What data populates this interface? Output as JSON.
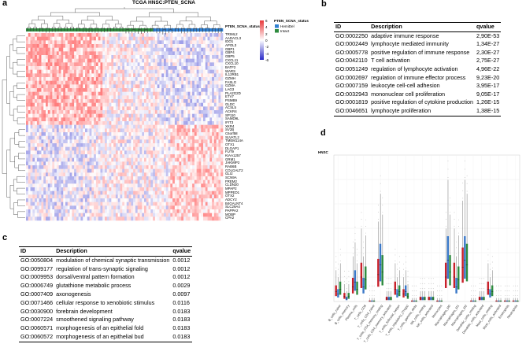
{
  "panel_a": {
    "letter": "a",
    "title": "TCGA HNSC:PTEN_SCNA",
    "annotation_label": "PTEN_SCNA_status",
    "legend_title": "PTEN_SCNA_status",
    "legend_items": [
      {
        "label": "HemiDel",
        "color": "#2f7fd1"
      },
      {
        "label": "Intact",
        "color": "#2e8b3e"
      }
    ],
    "color_scale_ticks": [
      "6",
      "4",
      "2",
      "0",
      "-2",
      "-4",
      "-6"
    ],
    "colors": {
      "high": "#e8383a",
      "mid": "#ffffff",
      "low": "#2a2ac8"
    },
    "genes": [
      "TRIML2",
      "AADACL3",
      "IDO1",
      "APOL3",
      "GBP1",
      "GBP4",
      "GBP5",
      "CXCL11",
      "CXCL10",
      "BATF2",
      "WARS",
      "IL12RB1",
      "GZMH",
      "FASLG",
      "GZMA",
      "LAG3",
      "PLA2G2D",
      "ETV7",
      "PSMB9",
      "GLDC",
      "ACSL5",
      "ACKR4",
      "SP110",
      "SAMD9L",
      "IFIT3",
      "XKR4",
      "SV2B",
      "C6orf58",
      "SLVATL2",
      "TMEM114A",
      "OTX1",
      "DLGAP1",
      "FUT9",
      "KIAA1257",
      "GRM1",
      "JAKMIP2",
      "RAB6B",
      "COLGALT2",
      "GLI2",
      "SCN9A",
      "FREM2",
      "CLDN20",
      "MPAP2",
      "MPPED1",
      "OTX2",
      "ADCY2",
      "B4GALNT4",
      "SLC29A4",
      "PAPPA2",
      "MOBP",
      "CPA2"
    ]
  },
  "panel_b": {
    "letter": "b",
    "headers": [
      "ID",
      "Description",
      "qvalue"
    ],
    "rows": [
      [
        "GO:0002250",
        "adaptive immune response",
        "2,90E-53"
      ],
      [
        "GO:0002449",
        "lymphocyte mediated immunity",
        "1,34E-27"
      ],
      [
        "GO:0005778",
        "positive regulation of immune response",
        "2,30E-27"
      ],
      [
        "GO:0042110",
        "T cell activation",
        "2,75E-27"
      ],
      [
        "GO:0051249",
        "regulation of lymphocyte activation",
        "4,96E-22"
      ],
      [
        "GO:0002697",
        "regulation of immune effector process",
        "9,23E-20"
      ],
      [
        "GO:0007159",
        "leukocyte cell-cell adhesion",
        "3,95E-17"
      ],
      [
        "GO:0032943",
        "mononuclear cell proliferation",
        "9,05E-17"
      ],
      [
        "GO:0001819",
        "positive regulation of cytokine production",
        "1,26E-15"
      ],
      [
        "GO:0046651",
        "lymphocyte proliferation",
        "1,38E-15"
      ]
    ]
  },
  "panel_c": {
    "letter": "c",
    "headers": [
      "ID",
      "Description",
      "qvalue"
    ],
    "rows": [
      [
        "GO:0050804",
        "modulation of chemical synaptic transmission",
        "0.0012"
      ],
      [
        "GO:0099177",
        "regulation of trans-synaptic signaling",
        "0.0012"
      ],
      [
        "GO:0009953",
        "dorsal/ventral pattern formation",
        "0.0012"
      ],
      [
        "GO:0006749",
        "glutathione metabolic process",
        "0.0029"
      ],
      [
        "GO:0007409",
        "axonogenesis",
        "0.0097"
      ],
      [
        "GO:0071466",
        "cellular response to xenobiotic stimulus",
        "0.0116"
      ],
      [
        "GO:0030900",
        "forebrain development",
        "0.0183"
      ],
      [
        "GO:0007224",
        "smoothened signaling pathway",
        "0.0183"
      ],
      [
        "GO:0060571",
        "morphogenesis of an epithelial fold",
        "0.0183"
      ],
      [
        "GO:0060572",
        "morphogenesis of an epithelial bud",
        "0.0183"
      ]
    ]
  },
  "panel_d": {
    "letter": "d",
    "title": "HNSC",
    "colors": {
      "red": "#c8202a",
      "blue": "#3a78c8",
      "green": "#2e8b3e"
    },
    "chart_data": {
      "type": "box",
      "title": "HNSC",
      "categories": [
        "B_cells_naive",
        "B_cells_memory",
        "Plasma_cells",
        "T_cells_CD8",
        "T_cells_CD4_naive",
        "T_cells_CD4_memory_resting",
        "T_cells_CD4_memory_activated",
        "T_cells_follicular_helper",
        "T_cells_regulatory_(Tregs)",
        "T_cells_gamma_delta",
        "NK_cells_resting",
        "NK_cells_activated",
        "Monocytes",
        "Macrophages_M0",
        "Macrophages_M1",
        "Macrophages_M2",
        "Dendritic_cells_resting",
        "Dendritic_cells_activated",
        "Mast_cells_resting",
        "Mast_cells_activated",
        "Eosinophils",
        "Neutrophils"
      ],
      "series": [
        {
          "color": "#c8202a",
          "medians": [
            0.04,
            0.02,
            0.06,
            0.1,
            0.0,
            0.11,
            0.01,
            0.05,
            0.03,
            0.0,
            0.01,
            0.01,
            0.0,
            0.1,
            0.1,
            0.14,
            0.0,
            0.01,
            0.05,
            0.0,
            0.0,
            0.0
          ]
        },
        {
          "color": "#3a78c8",
          "medians": [
            0.03,
            0.01,
            0.08,
            0.06,
            0.0,
            0.15,
            0.01,
            0.03,
            0.04,
            0.0,
            0.01,
            0.01,
            0.0,
            0.17,
            0.06,
            0.17,
            0.0,
            0.01,
            0.03,
            0.0,
            0.0,
            0.0
          ]
        },
        {
          "color": "#2e8b3e",
          "medians": [
            0.05,
            0.02,
            0.05,
            0.09,
            0.0,
            0.12,
            0.01,
            0.04,
            0.02,
            0.0,
            0.01,
            0.01,
            0.0,
            0.12,
            0.09,
            0.15,
            0.0,
            0.01,
            0.04,
            0.0,
            0.0,
            0.0
          ]
        }
      ],
      "ylim": [
        0,
        0.6
      ]
    }
  }
}
